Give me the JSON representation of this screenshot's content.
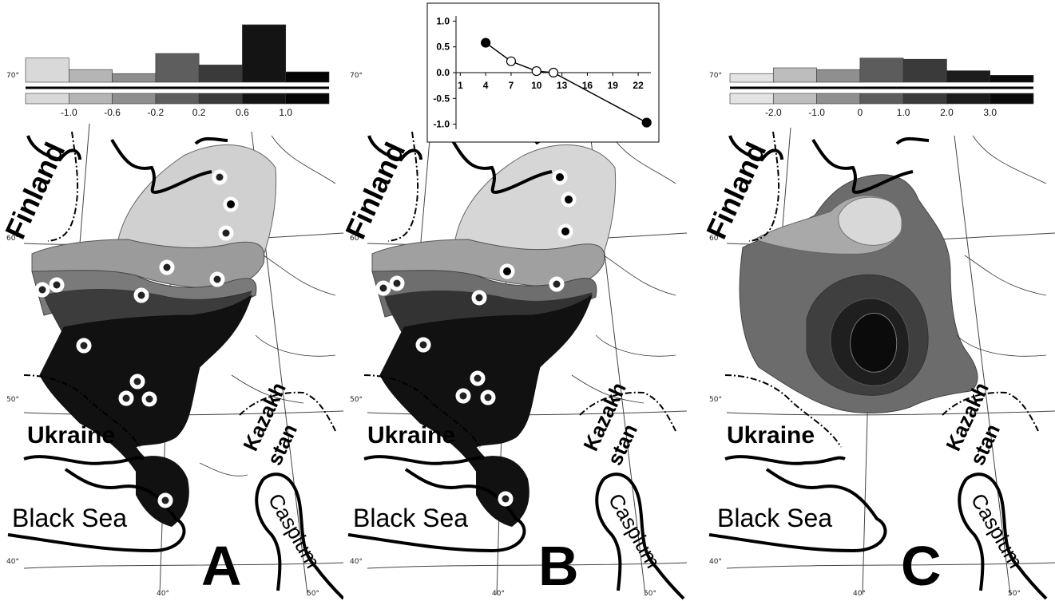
{
  "labels": {
    "finland": "Finland",
    "ukraine": "Ukraine",
    "kazakhstan_line1": "Kazakh",
    "kazakhstan_line2": "stan",
    "black_sea": "Black Sea",
    "caspium": "Caspium",
    "lat_70": "70°",
    "lat_60": "60°",
    "lat_50": "50°",
    "lat_40": "40°",
    "lon_40": "40°",
    "lon_50": "50°"
  },
  "panels": [
    {
      "letter": "A",
      "legend_ticks": [
        "-1.0",
        "-0.6",
        "-0.2",
        "0.2",
        "0.6",
        "1.0"
      ],
      "legend_colors": [
        "#d9d9d9",
        "#b5b5b5",
        "#8e8e8e",
        "#5e5e5e",
        "#3a3a3a",
        "#141414",
        "#050505"
      ],
      "histogram": [
        0.42,
        0.22,
        0.15,
        0.5,
        0.3,
        1.0,
        0.18
      ]
    },
    {
      "letter": "B",
      "legend_ticks": [],
      "legend_colors": [],
      "histogram": []
    },
    {
      "letter": "C",
      "legend_ticks": [
        "-2.0",
        "-1.0",
        "0",
        "1.0",
        "2.0",
        "3.0"
      ],
      "legend_colors": [
        "#e3e3e3",
        "#bdbdbd",
        "#8f8f8f",
        "#5c5c5c",
        "#3a3a3a",
        "#1c1c1c",
        "#0a0a0a"
      ],
      "histogram": [
        0.15,
        0.25,
        0.22,
        0.42,
        0.4,
        0.2,
        0.12
      ]
    }
  ],
  "chart_data": {
    "type": "line",
    "x_ticks": [
      "1",
      "4",
      "7",
      "10",
      "13",
      "16",
      "19",
      "22"
    ],
    "y_ticks": [
      "1.0",
      "0.5",
      "0.0",
      "-0.5",
      "-1.0"
    ],
    "x": [
      4,
      7,
      10,
      12,
      23
    ],
    "y": [
      0.58,
      0.22,
      0.03,
      0.0,
      -0.97
    ],
    "point_fill": [
      "#000000",
      "#ffffff",
      "#ffffff",
      "#ffffff",
      "#000000"
    ],
    "xlim": [
      0.5,
      23.5
    ],
    "ylim": [
      -1.1,
      1.1
    ]
  },
  "sample_points_A": [
    [
      275,
      222,
      "o"
    ],
    [
      289,
      256,
      "f"
    ],
    [
      283,
      292,
      "o"
    ],
    [
      209,
      335,
      "o"
    ],
    [
      272,
      350,
      "o"
    ],
    [
      177,
      370,
      "o"
    ],
    [
      53,
      363,
      "o"
    ],
    [
      71,
      357,
      "o"
    ],
    [
      105,
      433,
      "o"
    ],
    [
      172,
      478,
      "o"
    ],
    [
      158,
      499,
      "o"
    ],
    [
      187,
      500,
      "o"
    ],
    [
      207,
      627,
      "o"
    ]
  ],
  "sample_points_B": [
    [
      271,
      222,
      "f"
    ],
    [
      282,
      250,
      "f"
    ],
    [
      278,
      290,
      "f"
    ],
    [
      205,
      340,
      "f"
    ],
    [
      267,
      356,
      "o"
    ],
    [
      170,
      373,
      "o"
    ],
    [
      50,
      361,
      "o"
    ],
    [
      67,
      355,
      "o"
    ],
    [
      100,
      432,
      "o"
    ],
    [
      168,
      474,
      "o"
    ],
    [
      150,
      496,
      "o"
    ],
    [
      181,
      498,
      "o"
    ],
    [
      203,
      625,
      "o"
    ]
  ]
}
